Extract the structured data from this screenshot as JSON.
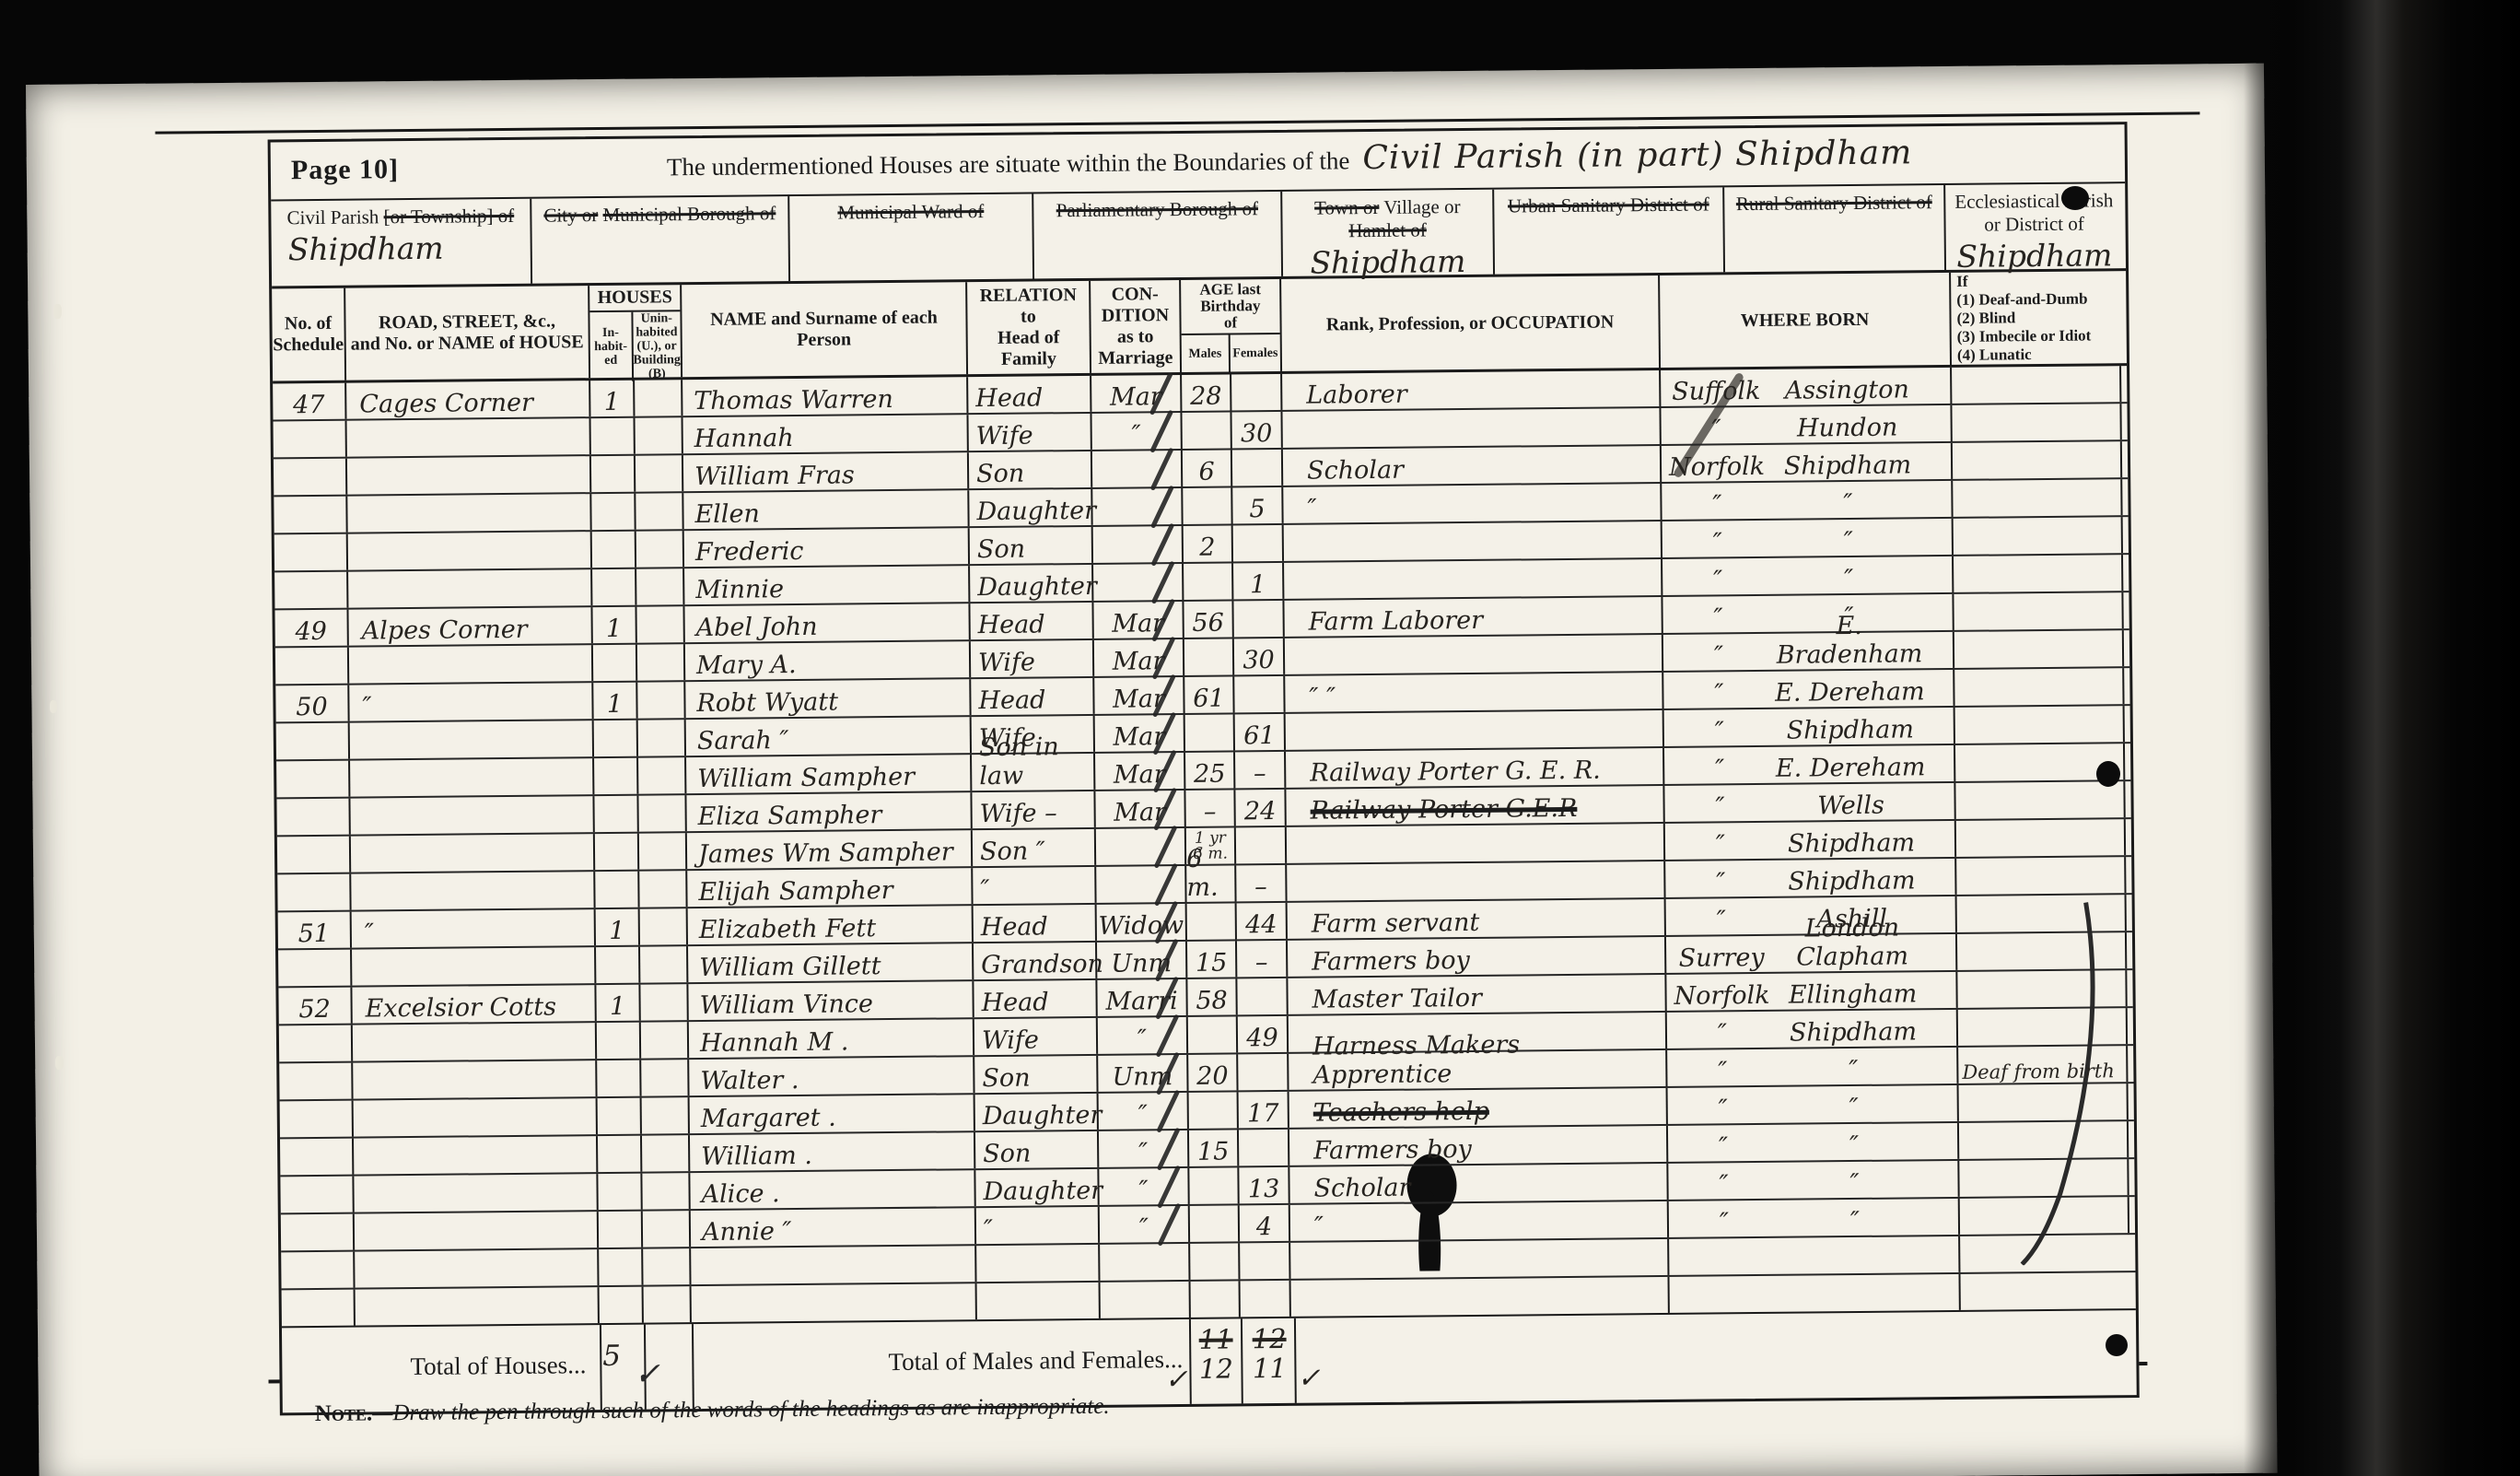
{
  "colors": {
    "paper": "#f3f0e6",
    "ink": "#1b1b1b"
  },
  "document": {
    "page_label": "Page 10]",
    "title_printed": "The undermentioned Houses are situate within the Boundaries of the",
    "title_handwritten": "Civil Parish (in part) Shipdham",
    "footnote_lead": "Note.",
    "footnote_rest": "—Draw the pen through such of the words of the headings as are inappropriate."
  },
  "district_boxes": [
    {
      "label": [
        {
          "t": "Civil Parish ",
          "s": false
        },
        {
          "t": "[or Township] of",
          "s": true
        }
      ],
      "value": "Shipdham"
    },
    {
      "label": [
        {
          "t": "City or",
          "s": true
        },
        {
          "t": "Municipal Borough of",
          "s": true
        }
      ],
      "value": ""
    },
    {
      "label": [
        {
          "t": "Municipal Ward of",
          "s": true
        }
      ],
      "value": ""
    },
    {
      "label": [
        {
          "t": "Parliamentary Borough of",
          "s": true
        }
      ],
      "value": ""
    },
    {
      "label": [
        {
          "t": "Town or",
          "s": true
        },
        {
          "t": " Village or",
          "s": false
        },
        {
          "t": "Hamlet of",
          "s": true
        }
      ],
      "value": "Shipdham"
    },
    {
      "label": [
        {
          "t": "Urban Sanitary District of",
          "s": true
        }
      ],
      "value": ""
    },
    {
      "label": [
        {
          "t": "Rural Sanitary District of",
          "s": true
        }
      ],
      "value": ""
    },
    {
      "label": [
        {
          "t": "Ecclesiastical Parish or",
          "s": false
        },
        {
          "t": "District of",
          "s": false
        }
      ],
      "value": "Shipdham"
    }
  ],
  "columns": {
    "schedule": "No. of\nSchedule",
    "road": "ROAD, STREET, &c.,\nand No. or NAME of HOUSE",
    "houses": "HOUSES",
    "inhabited": "In-\nhabit-\ned",
    "uninhabited": "Unin-\nhabited\n(U.), or\nBuilding\n(B)",
    "name": "NAME and Surname of each\nPerson",
    "relation": "RELATION\nto\nHead of Family",
    "condition": "CON-\nDITION\nas to\nMarriage",
    "age": "AGE last\nBirthday\nof",
    "males": "Males",
    "females": "Females",
    "occupation": "Rank, Profession, or OCCUPATION",
    "where_born": "WHERE  BORN",
    "infirmity": "If\n(1) Deaf-and-Dumb\n(2) Blind\n(3) Imbecile or Idiot\n(4) Lunatic"
  },
  "rows": [
    {
      "s": "47",
      "r": "Cages Corner",
      "i": "1",
      "n": "Thomas Warren",
      "rel": "Head",
      "c": "Mar",
      "am": "28",
      "af": "",
      "occ": "Laborer",
      "born_c": "Suffolk",
      "born_p": "Assington",
      "tally": true
    },
    {
      "n": "Hannah",
      "rel": "Wife",
      "c": "″",
      "af": "30",
      "born_c": "″",
      "born_p": "Hundon",
      "tally": true
    },
    {
      "n": "William Fras",
      "rel": "Son",
      "am": "6",
      "occ": "Scholar",
      "born_c": "Norfolk",
      "born_p": "Shipdham",
      "tally": true
    },
    {
      "n": "Ellen",
      "rel": "Daughter",
      "af": "5",
      "occ": "″",
      "born_c": "″",
      "born_p": "″",
      "tally": true
    },
    {
      "n": "Frederic",
      "rel": "Son",
      "am": "2",
      "born_c": "″",
      "born_p": "″",
      "tally": true
    },
    {
      "n": "Minnie",
      "rel": "Daughter",
      "af": "1",
      "born_c": "″",
      "born_p": "″",
      "tally": true
    },
    {
      "s": "49",
      "r": "Alpes Corner",
      "i": "1",
      "n": "Abel John",
      "rel": "Head",
      "c": "Mar",
      "am": "56",
      "occ": "Farm Laborer",
      "born_c": "″",
      "born_p": "″",
      "tally": true
    },
    {
      "n": "Mary A.",
      "rel": "Wife",
      "c": "Mar",
      "af": "30",
      "born_c": "″",
      "born_p": "E. Bradenham",
      "tally": true
    },
    {
      "s": "50",
      "r": "″",
      "i": "1",
      "n": "Robt Wyatt",
      "rel": "Head",
      "c": "Mar",
      "am": "61",
      "occ": "″      ″",
      "born_c": "″",
      "born_p": "E. Dereham",
      "tally": true
    },
    {
      "n": "Sarah ″",
      "rel": "Wife",
      "c": "Mar",
      "af": "61",
      "born_c": "″",
      "born_p": "Shipdham",
      "tally": true
    },
    {
      "n": "William Sampher",
      "rel": "Son in law",
      "c": "Mar",
      "am": "25",
      "af": "–",
      "occ": "Railway Porter G. E. R.",
      "born_c": "″",
      "born_p": "E. Dereham",
      "tally": true
    },
    {
      "n": "Eliza Sampher",
      "rel": "Wife –",
      "c": "Mar",
      "am": "–",
      "af": "24",
      "occ": "Railway Porter G.E.R",
      "occ_struck": true,
      "born_c": "″",
      "born_p": "Wells",
      "tally": true
    },
    {
      "n": "James Wm Sampher",
      "rel": "Son ″",
      "am": "1 yr\n6 m.",
      "am_small": true,
      "born_c": "″",
      "born_p": "Shipdham",
      "tally": true
    },
    {
      "n": "Elijah Sampher",
      "rel": "″",
      "am": "6 m.",
      "af": "–",
      "born_c": "″",
      "born_p": "Shipdham",
      "tally": true
    },
    {
      "s": "51",
      "r": "″",
      "i": "1",
      "n": "Elizabeth Fett",
      "rel": "Head",
      "c": "Widow",
      "af": "44",
      "occ": "Farm servant",
      "born_c": "″",
      "born_p": "Ashill",
      "tally": true
    },
    {
      "n": "William Gillett",
      "rel": "Grandson",
      "c": "Unm",
      "am": "15",
      "af": "–",
      "occ": "Farmers boy",
      "born_c": "Surrey",
      "born_p": "London Clapham",
      "tally": true
    },
    {
      "s": "52",
      "r": "Excelsior Cotts",
      "i": "1",
      "n": "William Vince",
      "rel": "Head",
      "c": "Marri",
      "am": "58",
      "occ": "Master Tailor",
      "born_c": "Norfolk",
      "born_p": "Ellingham",
      "tally": true
    },
    {
      "n": "Hannah M .",
      "rel": "Wife",
      "c": "″",
      "af": "49",
      "born_c": "″",
      "born_p": "Shipdham",
      "tally": true
    },
    {
      "n": "Walter .",
      "rel": "Son",
      "c": "Unm",
      "am": "20",
      "occ": "Harness Makers Apprentice",
      "born_c": "″",
      "born_p": "″",
      "inf": "Deaf from birth",
      "tally": true
    },
    {
      "n": "Margaret .",
      "rel": "Daughter",
      "c": "″",
      "af": "17",
      "occ": "Teachers help",
      "occ_struck": true,
      "born_c": "″",
      "born_p": "″",
      "tally": true
    },
    {
      "n": "William .",
      "rel": "Son",
      "c": "″",
      "am": "15",
      "occ": "Farmers boy",
      "born_c": "″",
      "born_p": "″",
      "tally": true
    },
    {
      "n": "Alice .",
      "rel": "Daughter",
      "c": "″",
      "af": "13",
      "occ": "Scholar",
      "born_c": "″",
      "born_p": "″",
      "tally": true
    },
    {
      "n": "Annie ″",
      "rel": "″",
      "c": "″",
      "af": "4",
      "occ": "″",
      "born_c": "″",
      "born_p": "″",
      "tally": true
    },
    {},
    {}
  ],
  "totals": {
    "houses_label": "Total of Houses...",
    "houses_value": "5",
    "houses_check": "✓",
    "mf_label": "Total of Males and Females...",
    "males_struck": "11",
    "males_final": "12",
    "males_check": "✓",
    "females_struck": "12",
    "females_final": "11",
    "females_check": "✓"
  }
}
